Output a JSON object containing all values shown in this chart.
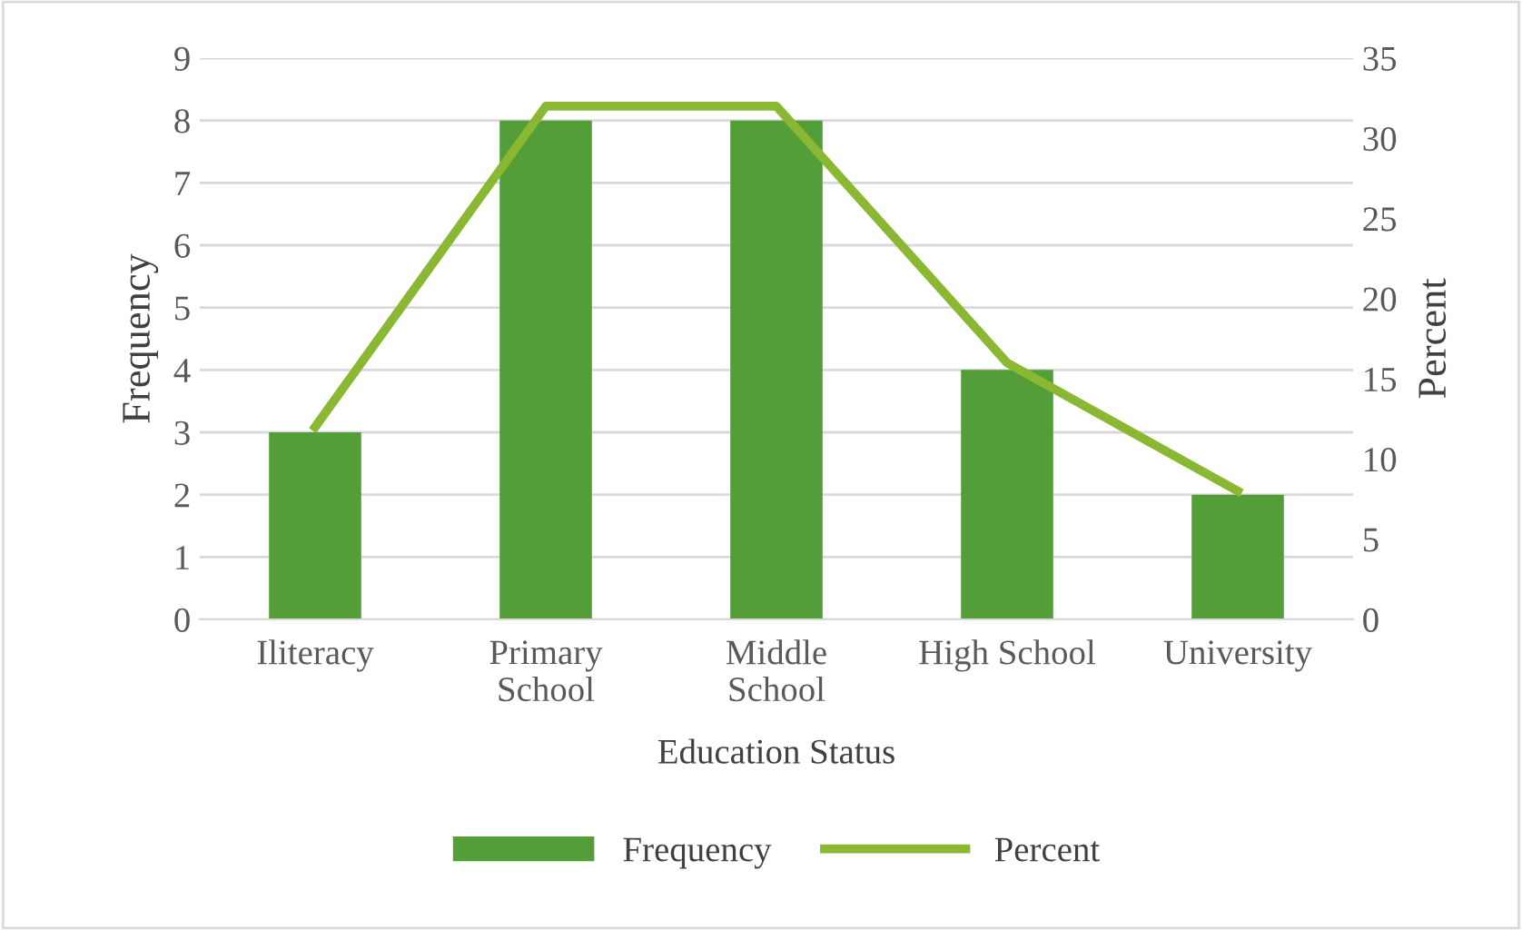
{
  "chart_data": {
    "type": "bar",
    "xlabel": "Education Status",
    "ylabel": "Frequency",
    "y2label": "Percent",
    "categories": [
      "Iliteracy",
      "Primary\nSchool",
      "Middle\nSchool",
      "High School",
      "University"
    ],
    "series": [
      {
        "name": "Frequency",
        "color": "#549e39",
        "values": [
          3,
          8,
          8,
          4,
          2
        ]
      },
      {
        "name": "Percent",
        "type": "line",
        "axis": "y2",
        "color": "#8ab833",
        "values": [
          12,
          32,
          32,
          16,
          8
        ]
      }
    ],
    "ylim": [
      0,
      9
    ],
    "yticks": [
      0,
      1,
      2,
      3,
      4,
      5,
      6,
      7,
      8,
      9
    ],
    "y2lim": [
      0,
      35
    ],
    "y2ticks": [
      0,
      5,
      10,
      15,
      20,
      25,
      30,
      35
    ],
    "grid": "y",
    "legend": "bottom",
    "marker": "none",
    "line_style": "solid"
  }
}
